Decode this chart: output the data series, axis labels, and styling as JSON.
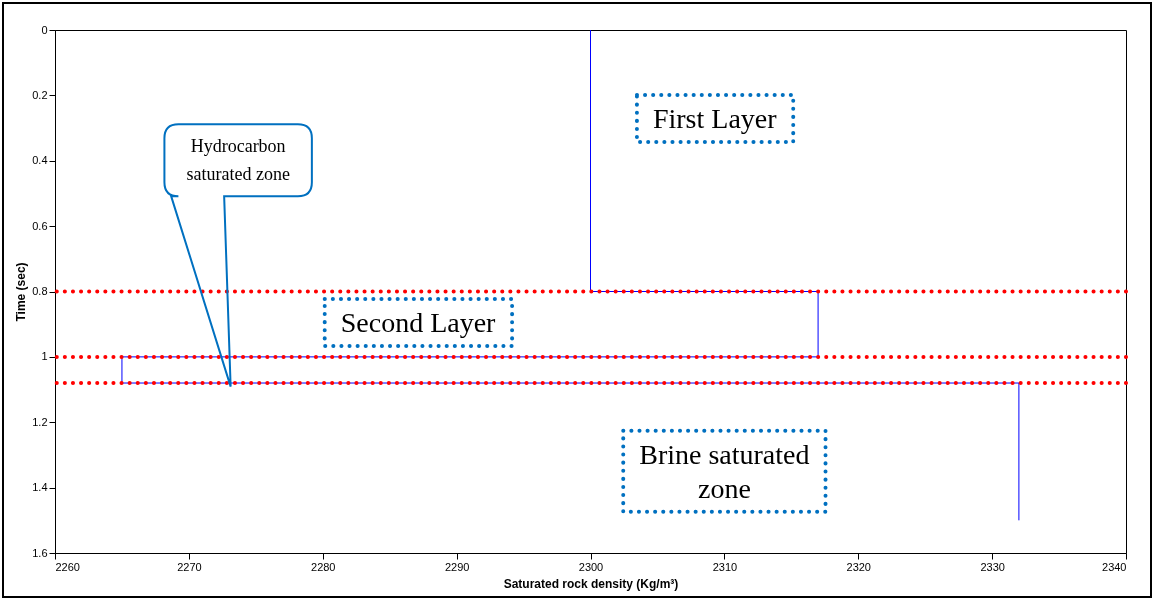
{
  "chart_data": {
    "type": "line",
    "xlabel": "Saturated rock density (Kg/m³)",
    "ylabel": "Time (sec)",
    "xlim": [
      2260,
      2340
    ],
    "xticks": [
      2260,
      2270,
      2280,
      2290,
      2300,
      2310,
      2320,
      2330,
      2340
    ],
    "ylim": [
      1.6,
      0
    ],
    "yticks": [
      0,
      0.2,
      0.4,
      0.6,
      0.8,
      1,
      1.2,
      1.4,
      1.6
    ],
    "grid": false,
    "marker": "none",
    "line_style": "solid",
    "series": [
      {
        "color": "#0000ff",
        "x": [
          2300,
          2300,
          2317,
          2317,
          2265,
          2265,
          2332,
          2332
        ],
        "values": [
          0,
          0.8,
          0.8,
          1,
          1,
          1.08,
          1.08,
          1.5
        ]
      }
    ],
    "ref_lines": [
      {
        "axis": "y",
        "value": 0.8,
        "color": "#ff0000",
        "line_style": "dotted"
      },
      {
        "axis": "y",
        "value": 1,
        "color": "#ff0000",
        "line_style": "dotted"
      },
      {
        "axis": "y",
        "value": 1.08,
        "color": "#ff0000",
        "line_style": "dotted"
      }
    ],
    "annotations": [
      "First Layer",
      "Second Layer",
      "Brine saturated\nzone",
      "Hydrocarbon\nsaturated zone"
    ]
  }
}
